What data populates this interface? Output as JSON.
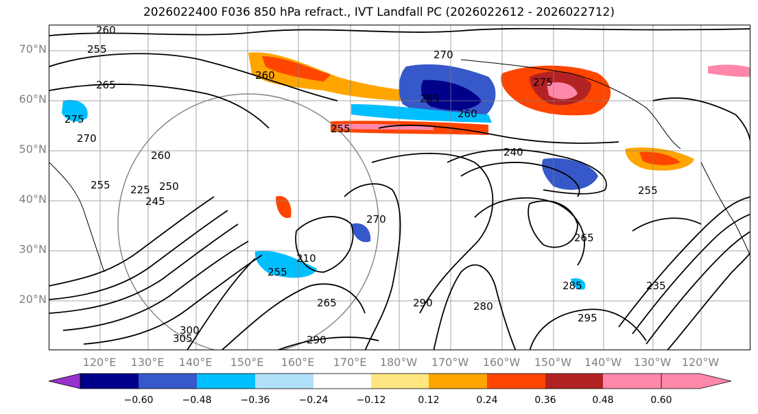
{
  "title": "2026022400 F036 850 hPa refract., IVT Landfall PC (2026022612 - 2026022712)",
  "map": {
    "lat_labels": [
      "70°N",
      "60°N",
      "50°N",
      "40°N",
      "30°N",
      "20°N"
    ],
    "lat_values": [
      70,
      60,
      50,
      40,
      30,
      20
    ],
    "lon_labels": [
      "120°E",
      "130°E",
      "140°E",
      "150°E",
      "160°E",
      "170°E",
      "180°W",
      "170°W",
      "160°W",
      "150°W",
      "140°W",
      "130°W",
      "120°W"
    ],
    "contour_labels": [
      "260",
      "255",
      "265",
      "275",
      "270",
      "260",
      "270",
      "265",
      "260",
      "255",
      "275",
      "255",
      "240",
      "255",
      "260",
      "265",
      "270",
      "280",
      "285",
      "290",
      "295",
      "300",
      "305",
      "290",
      "265",
      "235",
      "245",
      "250",
      "210",
      "255",
      "225"
    ],
    "colors": {
      "gridline": "#808080",
      "contour": "#000000",
      "coast": "#000000"
    }
  },
  "colorbar": {
    "tick_labels": [
      "−0.60",
      "−0.48",
      "−0.36",
      "−0.24",
      "−0.12",
      "0.12",
      "0.24",
      "0.36",
      "0.48",
      "0.60"
    ],
    "tick_values": [
      -0.6,
      -0.48,
      -0.36,
      -0.24,
      -0.12,
      0.12,
      0.24,
      0.36,
      0.48,
      0.6
    ],
    "colors": [
      "#9932cc",
      "#00008b",
      "#3658c8",
      "#00bfff",
      "#b0e0fa",
      "#ffffff",
      "#ffe680",
      "#ffa500",
      "#ff4500",
      "#b22222",
      "#ff88aa"
    ]
  }
}
